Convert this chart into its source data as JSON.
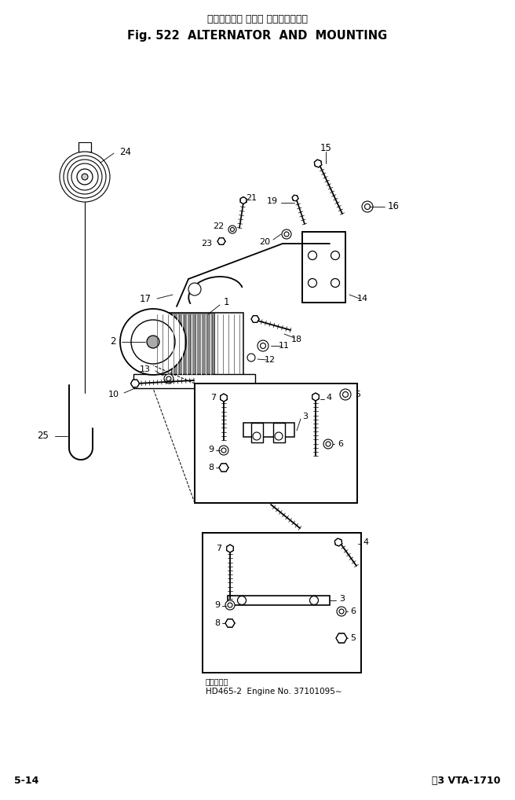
{
  "title_japanese": "オルタネータ および マウンティング",
  "title_english": "Fig. 522  ALTERNATOR  AND  MOUNTING",
  "footer_left": "5-14",
  "footer_right": "␹3 VTA-1710",
  "bg": "#ffffff",
  "black": "#000000",
  "gray": "#555555",
  "inset_note": "HD465-2  Engine No. 37101095∼",
  "inset_note2": "適用機番号"
}
